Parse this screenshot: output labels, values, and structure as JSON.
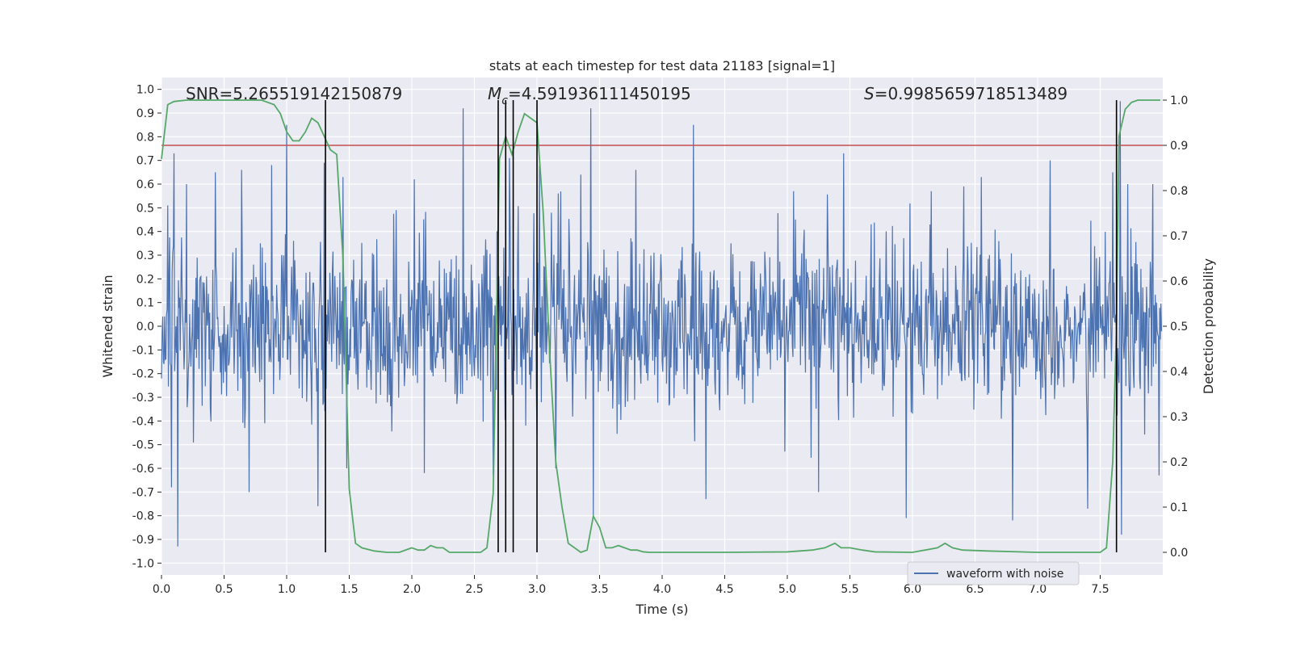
{
  "chart_data": {
    "type": "line",
    "title": "stats at each timestep for test data 21183 [signal=1]",
    "xlabel": "Time (s)",
    "ylabel_left": "Whitened strain",
    "ylabel_right": "Detection probability",
    "xlim": [
      0.0,
      8.0
    ],
    "ylim_left": [
      -1.05,
      1.05
    ],
    "ylim_right": [
      -0.05,
      1.05
    ],
    "xticks": [
      "0.0",
      "0.5",
      "1.0",
      "1.5",
      "2.0",
      "2.5",
      "3.0",
      "3.5",
      "4.0",
      "4.5",
      "5.0",
      "5.5",
      "6.0",
      "6.5",
      "7.0",
      "7.5"
    ],
    "yticks_left": [
      "-1.0",
      "-0.9",
      "-0.8",
      "-0.7",
      "-0.6",
      "-0.5",
      "-0.4",
      "-0.3",
      "-0.2",
      "-0.1",
      "0.0",
      "0.1",
      "0.2",
      "0.3",
      "0.4",
      "0.5",
      "0.6",
      "0.7",
      "0.8",
      "0.9",
      "1.0"
    ],
    "yticks_right": [
      "0.0",
      "0.1",
      "0.2",
      "0.3",
      "0.4",
      "0.5",
      "0.6",
      "0.7",
      "0.8",
      "0.9",
      "1.0"
    ],
    "grid": true,
    "annotations": {
      "snr": "SNR=5.265519142150879",
      "mc_symbol": "M",
      "mc_sub": "c",
      "mc_value": "=4.591936111450195",
      "s_symbol": "S",
      "s_value": "=0.9985659718513489"
    },
    "threshold_prob": 0.9,
    "vertical_lines_x": [
      1.31,
      2.69,
      2.75,
      2.81,
      3.0,
      7.63
    ],
    "legend": {
      "label": "waveform with noise",
      "placement": "lower-right"
    },
    "waveform": {
      "name": "waveform with noise",
      "color": "#4c72b0",
      "sample_rate_per_second": 200,
      "amplitude_typical": 0.32,
      "peaks": [
        [
          0.05,
          0.51
        ],
        [
          0.08,
          -0.68
        ],
        [
          0.1,
          0.73
        ],
        [
          0.13,
          -0.93
        ],
        [
          0.2,
          0.6
        ],
        [
          0.43,
          0.65
        ],
        [
          0.64,
          0.66
        ],
        [
          0.7,
          -0.7
        ],
        [
          0.88,
          0.68
        ],
        [
          1.0,
          0.85
        ],
        [
          1.25,
          0.65
        ],
        [
          1.25,
          -0.76
        ],
        [
          1.3,
          0.69
        ],
        [
          1.45,
          0.63
        ],
        [
          1.48,
          -0.6
        ],
        [
          2.02,
          0.62
        ],
        [
          2.1,
          -0.62
        ],
        [
          2.41,
          0.92
        ],
        [
          2.65,
          -0.63
        ],
        [
          2.78,
          0.71
        ],
        [
          3.02,
          0.68
        ],
        [
          3.15,
          -0.6
        ],
        [
          3.35,
          0.64
        ],
        [
          3.43,
          0.92
        ],
        [
          3.45,
          -0.8
        ],
        [
          3.79,
          0.66
        ],
        [
          4.25,
          0.85
        ],
        [
          4.35,
          -0.73
        ],
        [
          5.05,
          0.57
        ],
        [
          5.25,
          -0.7
        ],
        [
          5.45,
          0.73
        ],
        [
          5.95,
          -0.81
        ],
        [
          6.15,
          0.57
        ],
        [
          6.55,
          0.63
        ],
        [
          6.8,
          -0.82
        ],
        [
          7.1,
          0.7
        ],
        [
          7.4,
          -0.77
        ],
        [
          7.6,
          0.65
        ],
        [
          7.66,
          0.95
        ],
        [
          7.67,
          -0.88
        ],
        [
          7.72,
          0.6
        ],
        [
          7.92,
          0.6
        ],
        [
          7.97,
          -0.63
        ]
      ]
    },
    "probability": {
      "name": "detection probability",
      "color": "#55a868",
      "x": [
        0.0,
        0.05,
        0.1,
        0.2,
        0.3,
        0.4,
        0.5,
        0.6,
        0.7,
        0.8,
        0.9,
        0.95,
        1.0,
        1.05,
        1.1,
        1.15,
        1.2,
        1.25,
        1.3,
        1.35,
        1.4,
        1.45,
        1.5,
        1.55,
        1.6,
        1.7,
        1.8,
        1.9,
        2.0,
        2.05,
        2.1,
        2.15,
        2.2,
        2.25,
        2.3,
        2.35,
        2.4,
        2.5,
        2.55,
        2.6,
        2.65,
        2.7,
        2.75,
        2.8,
        2.85,
        2.9,
        2.95,
        3.0,
        3.05,
        3.1,
        3.15,
        3.2,
        3.25,
        3.3,
        3.35,
        3.4,
        3.45,
        3.5,
        3.55,
        3.6,
        3.65,
        3.7,
        3.75,
        3.8,
        3.85,
        3.9,
        4.0,
        4.5,
        5.0,
        5.2,
        5.3,
        5.38,
        5.43,
        5.5,
        5.6,
        5.7,
        6.0,
        6.2,
        6.26,
        6.32,
        6.4,
        6.6,
        7.0,
        7.3,
        7.5,
        7.55,
        7.6,
        7.63,
        7.65,
        7.7,
        7.75,
        7.8,
        7.9,
        7.98
      ],
      "values": [
        0.87,
        0.99,
        0.997,
        1.0,
        1.0,
        1.0,
        1.0,
        1.0,
        1.0,
        1.0,
        0.99,
        0.97,
        0.93,
        0.91,
        0.91,
        0.93,
        0.96,
        0.95,
        0.92,
        0.89,
        0.88,
        0.65,
        0.14,
        0.02,
        0.01,
        0.003,
        0.0,
        0.0,
        0.01,
        0.005,
        0.005,
        0.015,
        0.01,
        0.01,
        0.0,
        0.0,
        0.0,
        0.0,
        0.0,
        0.01,
        0.13,
        0.87,
        0.92,
        0.88,
        0.93,
        0.97,
        0.96,
        0.95,
        0.75,
        0.45,
        0.2,
        0.1,
        0.02,
        0.01,
        0.0,
        0.005,
        0.08,
        0.055,
        0.01,
        0.01,
        0.015,
        0.01,
        0.005,
        0.005,
        0.001,
        0.0,
        0.0,
        0.0,
        0.001,
        0.005,
        0.01,
        0.02,
        0.01,
        0.01,
        0.005,
        0.001,
        0.0,
        0.01,
        0.02,
        0.01,
        0.005,
        0.003,
        0.0,
        0.0,
        0.0,
        0.01,
        0.2,
        0.5,
        0.92,
        0.98,
        0.995,
        1.0,
        1.0,
        1.0
      ]
    }
  }
}
